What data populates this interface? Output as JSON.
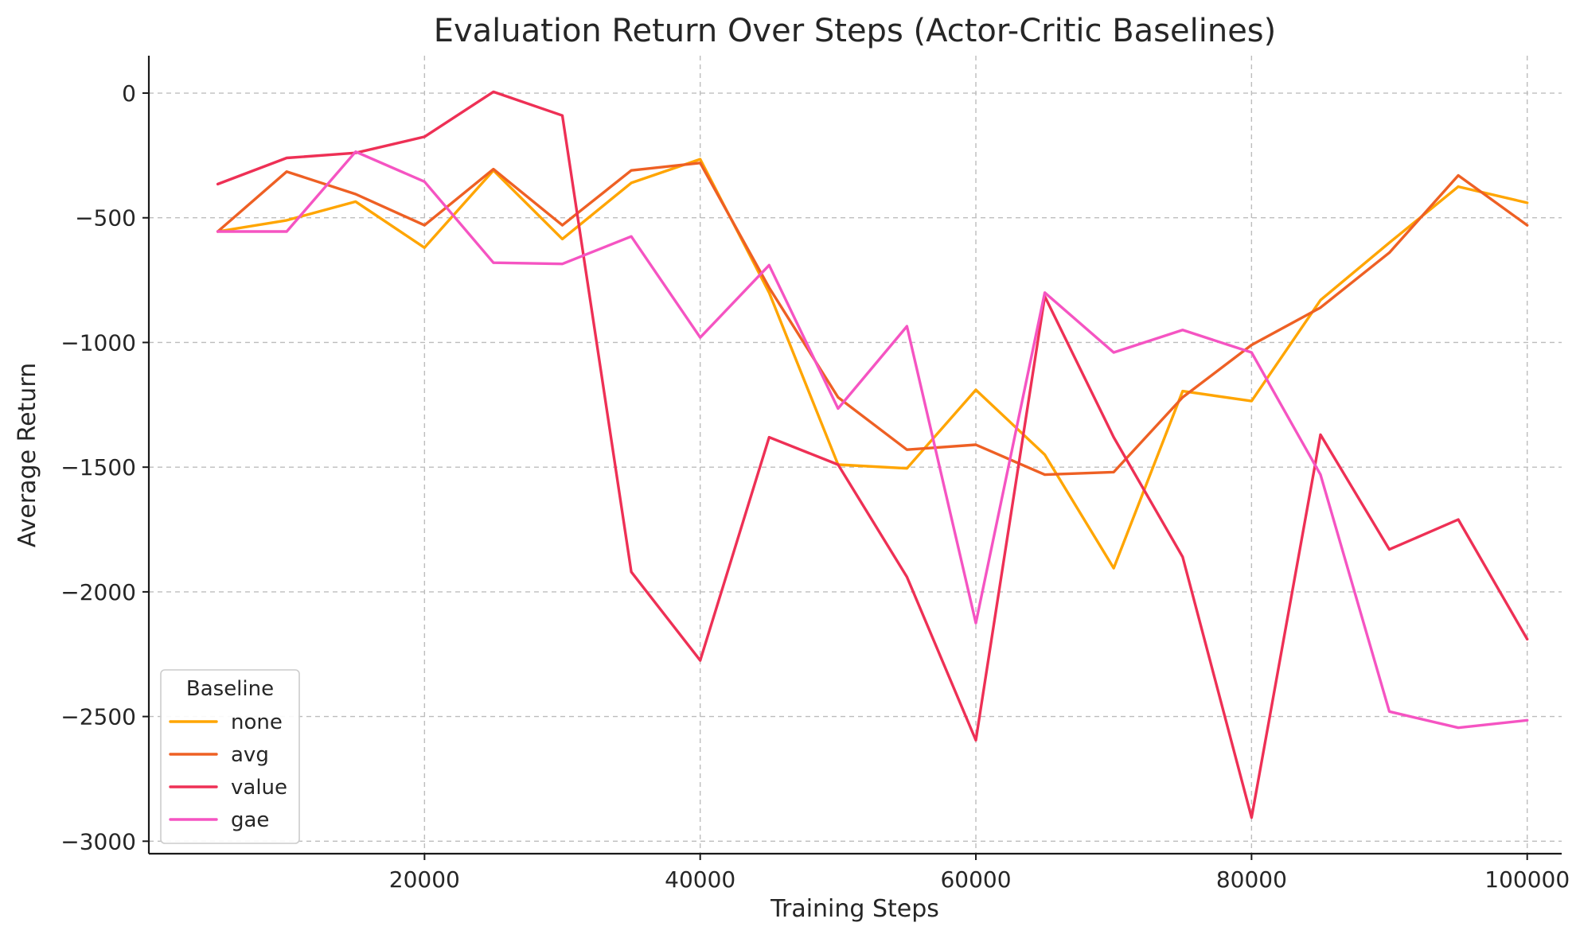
{
  "chart_data": {
    "type": "line",
    "title": "Evaluation Return Over Steps (Actor-Critic Baselines)",
    "xlabel": "Training Steps",
    "ylabel": "Average Return",
    "xlim": [
      0,
      102500
    ],
    "ylim": [
      -3050,
      150
    ],
    "xticks": [
      20000,
      40000,
      60000,
      80000,
      100000
    ],
    "yticks": [
      0,
      -500,
      -1000,
      -1500,
      -2000,
      -2500,
      -3000
    ],
    "ytick_labels": [
      "0",
      "−500",
      "−1000",
      "−1500",
      "−2000",
      "−2500",
      "−3000"
    ],
    "grid": true,
    "legend": {
      "title": "Baseline",
      "position": "lower-left"
    },
    "x": [
      5000,
      10000,
      15000,
      20000,
      25000,
      30000,
      35000,
      40000,
      45000,
      50000,
      55000,
      60000,
      65000,
      70000,
      75000,
      80000,
      85000,
      90000,
      95000,
      100000
    ],
    "series": [
      {
        "name": "none",
        "color": "#FFA500",
        "values": [
          -555,
          -510,
          -435,
          -620,
          -310,
          -585,
          -360,
          -265,
          -800,
          -1490,
          -1505,
          -1190,
          -1450,
          -1905,
          -1195,
          -1235,
          -830,
          -600,
          -375,
          -440
        ]
      },
      {
        "name": "avg",
        "color": "#EE6024",
        "values": [
          -555,
          -315,
          -405,
          -530,
          -305,
          -530,
          -310,
          -280,
          -780,
          -1220,
          -1430,
          -1410,
          -1530,
          -1520,
          -1220,
          -1010,
          -860,
          -640,
          -330,
          -530
        ]
      },
      {
        "name": "value",
        "color": "#EE3055",
        "values": [
          -365,
          -260,
          -240,
          -175,
          5,
          -90,
          -1920,
          -2275,
          -1380,
          -1490,
          -1940,
          -2595,
          -815,
          -1380,
          -1860,
          -2905,
          -1370,
          -1830,
          -1710,
          -2190
        ]
      },
      {
        "name": "gae",
        "color": "#F554C2",
        "values": [
          -555,
          -555,
          -235,
          -355,
          -680,
          -685,
          -575,
          -980,
          -690,
          -1265,
          -935,
          -2125,
          -800,
          -1040,
          -950,
          -1040,
          -1530,
          -2480,
          -2545,
          -2515
        ]
      }
    ]
  }
}
